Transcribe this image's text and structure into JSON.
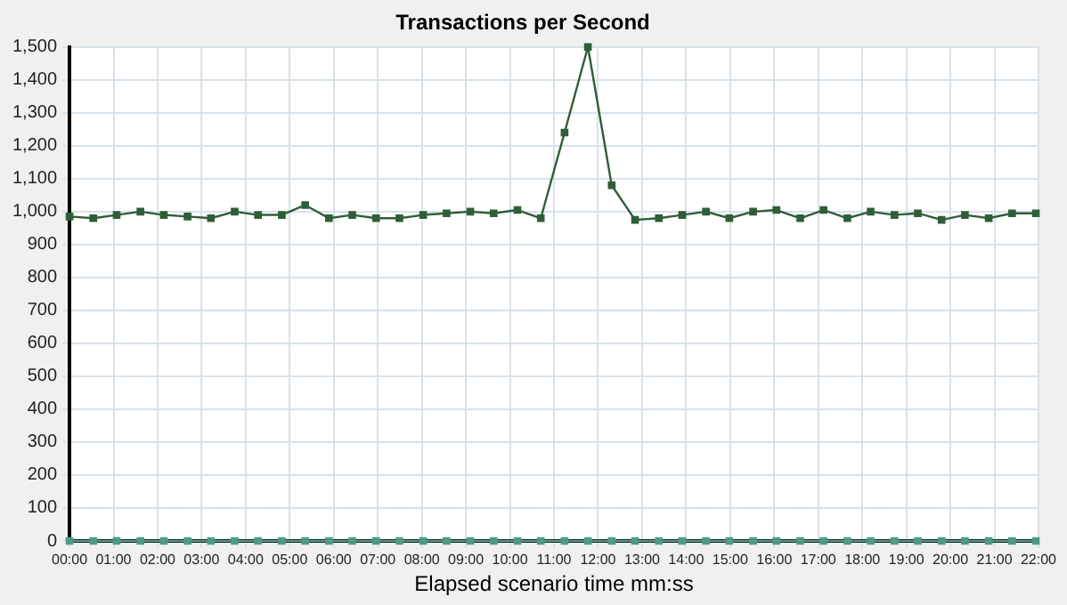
{
  "chart_data": {
    "type": "line",
    "title": "Transactions per Second",
    "xlabel": "Elapsed scenario time mm:ss",
    "x": [
      0,
      0.54,
      1.07,
      1.61,
      2.14,
      2.68,
      3.21,
      3.75,
      4.28,
      4.82,
      5.35,
      5.89,
      6.42,
      6.96,
      7.49,
      8.03,
      8.56,
      9.1,
      9.63,
      10.17,
      10.7,
      11.24,
      11.77,
      12.31,
      12.84,
      13.38,
      13.91,
      14.45,
      14.98,
      15.52,
      16.05,
      16.59,
      17.12,
      17.66,
      18.19,
      18.73,
      19.26,
      19.8,
      20.33,
      20.87,
      21.4,
      21.94
    ],
    "series": [
      {
        "color": "#2f5e38",
        "values": [
          985,
          980,
          990,
          1000,
          990,
          985,
          980,
          1000,
          990,
          990,
          1020,
          980,
          990,
          980,
          980,
          990,
          995,
          1000,
          995,
          1005,
          980,
          1240,
          1500,
          1080,
          975,
          980,
          990,
          1000,
          980,
          1000,
          1005,
          980,
          1005,
          980,
          1000,
          990,
          995,
          975,
          990,
          980,
          995,
          995
        ]
      },
      {
        "color": "#4f9a86",
        "values": [
          0,
          0,
          0,
          0,
          0,
          0,
          0,
          0,
          0,
          0,
          0,
          0,
          0,
          0,
          0,
          0,
          0,
          0,
          0,
          0,
          0,
          0,
          0,
          0,
          0,
          0,
          0,
          0,
          0,
          0,
          0,
          0,
          0,
          0,
          0,
          0,
          0,
          0,
          0,
          0,
          0,
          0
        ]
      }
    ],
    "xlim": [
      0,
      22
    ],
    "xticks": [
      {
        "value": 0,
        "label": "00:00"
      },
      {
        "value": 1,
        "label": "01:00"
      },
      {
        "value": 2,
        "label": "02:00"
      },
      {
        "value": 3,
        "label": "03:00"
      },
      {
        "value": 4,
        "label": "04:00"
      },
      {
        "value": 5,
        "label": "05:00"
      },
      {
        "value": 6,
        "label": "06:00"
      },
      {
        "value": 7,
        "label": "07:00"
      },
      {
        "value": 8,
        "label": "08:00"
      },
      {
        "value": 9,
        "label": "09:00"
      },
      {
        "value": 10,
        "label": "10:00"
      },
      {
        "value": 11,
        "label": "11:00"
      },
      {
        "value": 12,
        "label": "12:00"
      },
      {
        "value": 13,
        "label": "13:00"
      },
      {
        "value": 14,
        "label": "14:00"
      },
      {
        "value": 15,
        "label": "15:00"
      },
      {
        "value": 16,
        "label": "16:00"
      },
      {
        "value": 17,
        "label": "17:00"
      },
      {
        "value": 18,
        "label": "18:00"
      },
      {
        "value": 19,
        "label": "19:00"
      },
      {
        "value": 20,
        "label": "20:00"
      },
      {
        "value": 21,
        "label": "21:00"
      },
      {
        "value": 22,
        "label": "22:00"
      }
    ],
    "ylim": [
      0,
      1500
    ],
    "yticks": [
      0,
      100,
      200,
      300,
      400,
      500,
      600,
      700,
      800,
      900,
      {
        "value": 1000,
        "label": "1,000"
      },
      {
        "value": 1100,
        "label": "1,100"
      },
      {
        "value": 1200,
        "label": "1,200"
      },
      {
        "value": 1300,
        "label": "1,300"
      },
      {
        "value": 1400,
        "label": "1,400"
      },
      {
        "value": 1500,
        "label": "1,500"
      }
    ],
    "grid": true,
    "legend": false,
    "marker": "square",
    "line_style": "solid"
  }
}
